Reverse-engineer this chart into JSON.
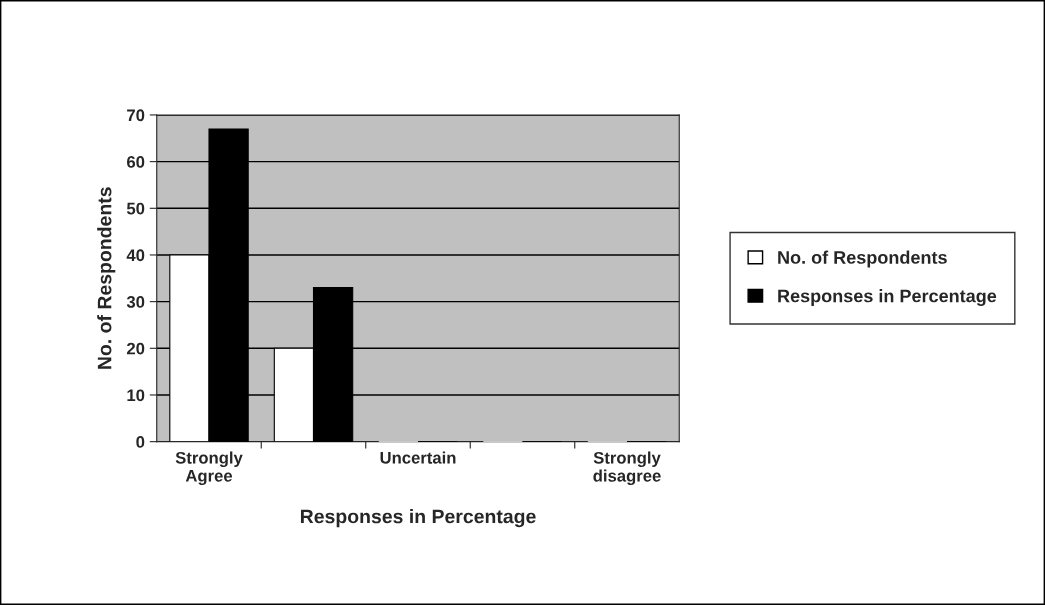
{
  "chart_data": {
    "type": "bar",
    "xlabel": "Responses in Percentage",
    "ylabel": "No. of Respondents",
    "categories": [
      "Strongly\nAgree",
      null,
      "Uncertain",
      null,
      "Strongly\ndisagree"
    ],
    "series": [
      {
        "name": "No. of Respondents",
        "color": "#ffffff",
        "values": [
          40,
          20,
          0,
          0,
          0
        ]
      },
      {
        "name": "Responses in Percentage",
        "color": "#000000",
        "values": [
          67,
          33,
          0,
          0,
          0
        ]
      }
    ],
    "ylim": [
      0,
      70
    ],
    "yticks": [
      0,
      10,
      20,
      30,
      40,
      50,
      60,
      70
    ],
    "grid": "y",
    "legend": "right"
  }
}
